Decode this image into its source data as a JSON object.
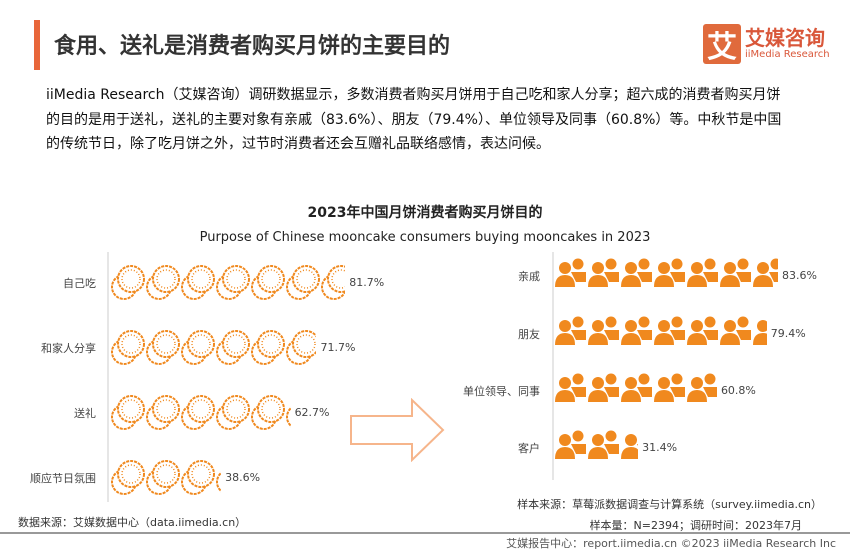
{
  "header": {
    "title": "食用、送礼是消费者购买月饼的主要目的",
    "logo_cn": "艾媒咨询",
    "logo_en": "iiMedia Research",
    "logo_mark": "艾"
  },
  "description": "iiMedia Research（艾媒咨询）调研数据显示，多数消费者购买月饼用于自己吃和家人分享；超六成的消费者购买月饼的目的是用于送礼，送礼的主要对象有亲戚（83.6%）、朋友（79.4%）、单位领导及同事（60.8%）等。中秋节是中国的传统节日，除了吃月饼之外，过节时消费者还会互赠礼品联络感情，表达问候。",
  "chart_data": [
    {
      "type": "bar",
      "orientation": "horizontal",
      "style": "pictograph",
      "icon": "mooncake-icon",
      "title": "2023年中国月饼消费者购买月饼目的",
      "subtitle": "Purpose of Chinese mooncake consumers buying mooncakes in 2023",
      "categories": [
        "自己吃",
        "和家人分享",
        "送礼",
        "顺应节日氛围"
      ],
      "values": [
        81.7,
        71.7,
        62.7,
        38.6
      ],
      "labels": [
        "81.7%",
        "71.7%",
        "62.7%",
        "38.6%"
      ],
      "xlim": [
        0,
        100
      ],
      "color": "#f0891e"
    },
    {
      "type": "bar",
      "orientation": "horizontal",
      "style": "pictograph",
      "icon": "people-icon",
      "categories": [
        "亲戚",
        "朋友",
        "单位领导、同事",
        "客户"
      ],
      "values": [
        83.6,
        79.4,
        60.8,
        31.4
      ],
      "labels": [
        "83.6%",
        "79.4%",
        "60.8%",
        "31.4%"
      ],
      "xlim": [
        0,
        100
      ],
      "color": "#f0891e"
    }
  ],
  "footer": {
    "source_left": "数据来源：艾媒数据中心（data.iimedia.cn）",
    "sample_source": "样本来源：草莓派数据调查与计算系统（survey.iimedia.cn）",
    "sample_info": "样本量：N=2394；调研时间：2023年7月",
    "copyright": "艾媒报告中心：report.iimedia.cn   ©2023  iiMedia Research  Inc"
  }
}
